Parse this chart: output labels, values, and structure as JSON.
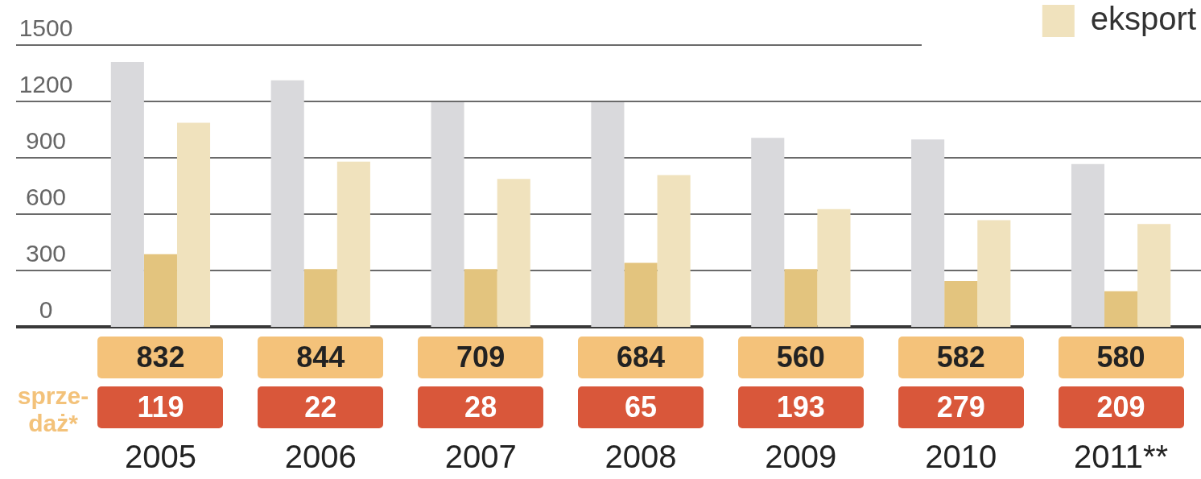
{
  "chart_data": {
    "type": "bar",
    "categories": [
      "2005",
      "2006",
      "2007",
      "2008",
      "2009",
      "2010",
      "2011**"
    ],
    "series": [
      {
        "color": "#d9d9dc",
        "values": [
          1410,
          1313,
          1196,
          1196,
          1006,
          998,
          867
        ]
      },
      {
        "color": "#e3c47e",
        "values": [
          387,
          307,
          307,
          341,
          307,
          244,
          190
        ]
      },
      {
        "name": "eksport",
        "color": "#f0e2bd",
        "values": [
          1086,
          880,
          787,
          808,
          627,
          568,
          547
        ]
      }
    ],
    "ylim": [
      0,
      1500
    ],
    "yticks": [
      0,
      300,
      600,
      900,
      1200,
      1500
    ],
    "grid": "y",
    "legend": "top right",
    "annotations": [
      "sprze-daż*",
      "832",
      "844",
      "709",
      "684",
      "560",
      "582",
      "580",
      "119",
      "22",
      "28",
      "65",
      "193",
      "279",
      "209"
    ]
  }
}
